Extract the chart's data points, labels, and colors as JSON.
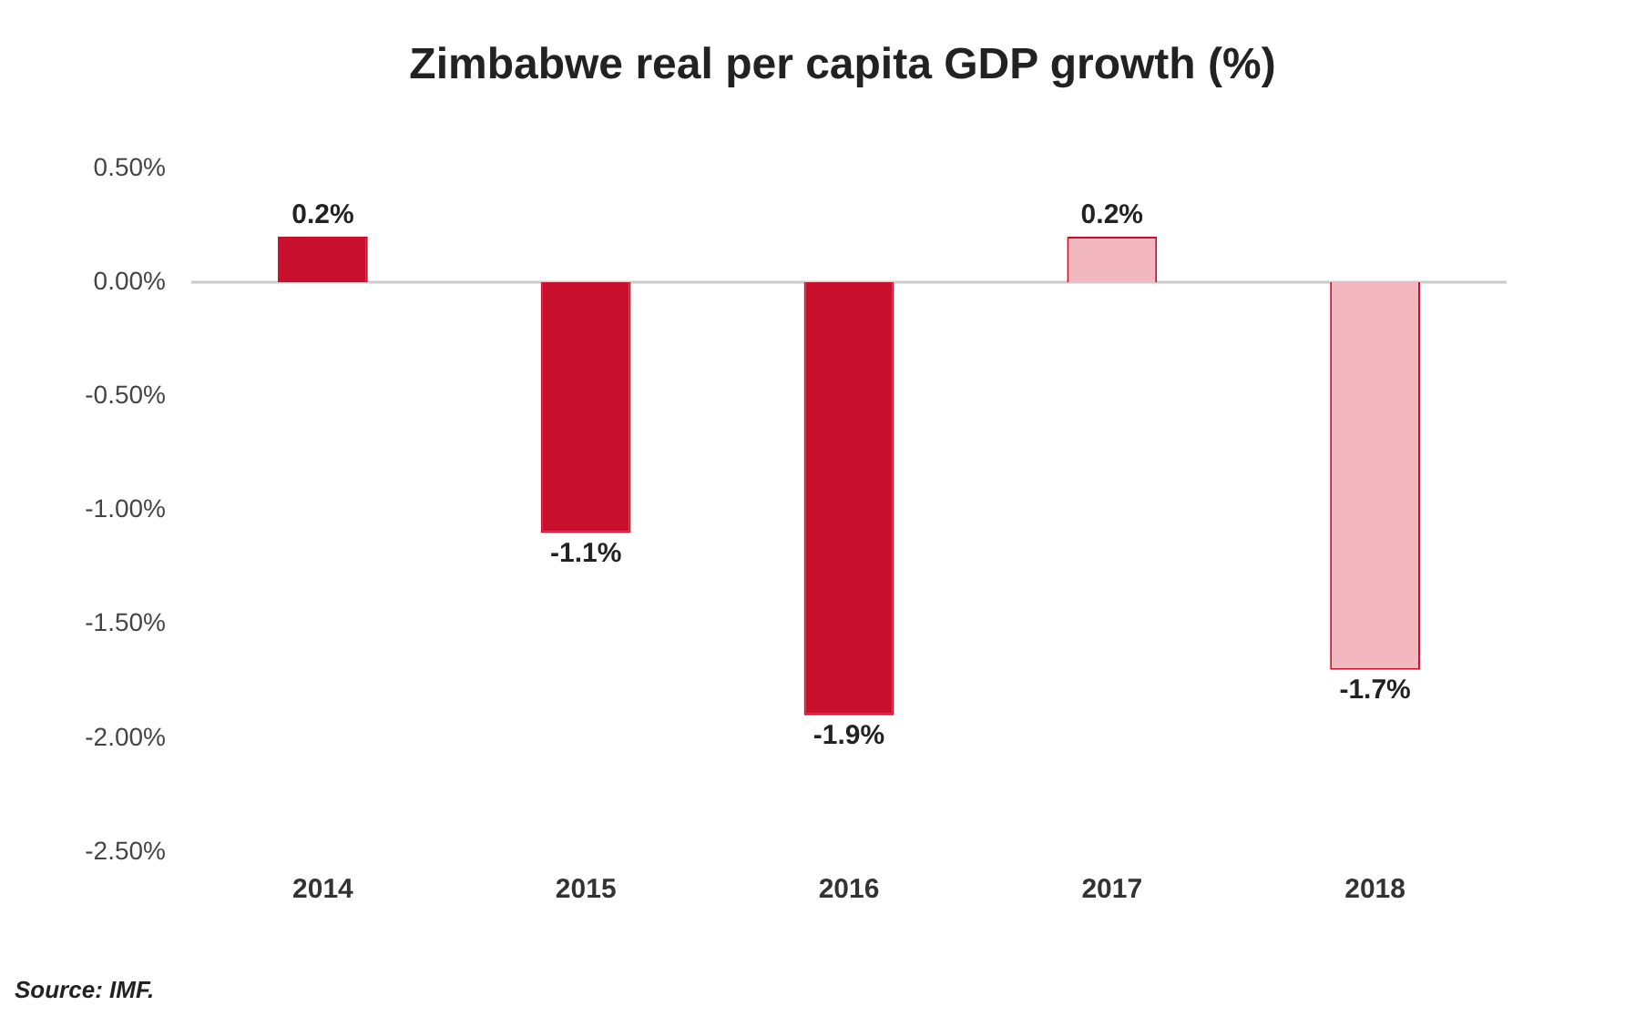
{
  "chart_data": {
    "type": "bar",
    "title": "Zimbabwe real per capita GDP growth (%)",
    "categories": [
      "2014",
      "2015",
      "2016",
      "2017",
      "2018"
    ],
    "values": [
      0.2,
      -1.1,
      -1.9,
      0.2,
      -1.7
    ],
    "value_labels": [
      "0.2%",
      "-1.1%",
      "-1.9%",
      "0.2%",
      "-1.7%"
    ],
    "colors": [
      "#c8102e",
      "#c8102e",
      "#c8102e",
      "#f3b8bf",
      "#f3b8bf"
    ],
    "ylim": [
      -2.5,
      0.5
    ],
    "yticks": [
      {
        "value": 0.5,
        "label": "0.50%"
      },
      {
        "value": 0,
        "label": "0.00%"
      },
      {
        "value": -0.5,
        "label": "-0.50%"
      },
      {
        "value": -1,
        "label": "-1.00%"
      },
      {
        "value": -1.5,
        "label": "-1.50%"
      },
      {
        "value": -2,
        "label": "-2.00%"
      },
      {
        "value": -2.5,
        "label": "-2.50%"
      }
    ],
    "ref_lines": [
      {
        "axis": "y",
        "value": 0,
        "color": "#cccccc"
      }
    ],
    "grid": false,
    "legend": false,
    "annotations": [
      "Source: IMF."
    ]
  }
}
